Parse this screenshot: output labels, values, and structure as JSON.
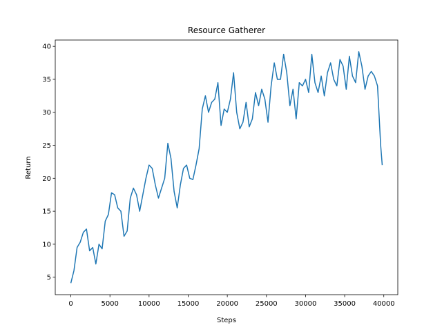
{
  "chart_data": {
    "type": "line",
    "title": "Resource Gatherer",
    "x_label": "Steps",
    "y_label": "Return",
    "x": [
      0,
      400,
      800,
      1200,
      1600,
      2000,
      2400,
      2800,
      3200,
      3600,
      4000,
      4400,
      4800,
      5200,
      5600,
      6000,
      6400,
      6800,
      7200,
      7600,
      8000,
      8400,
      8800,
      9200,
      9600,
      10000,
      10400,
      10800,
      11200,
      11600,
      12000,
      12400,
      12800,
      13200,
      13600,
      14000,
      14400,
      14800,
      15200,
      15600,
      16000,
      16400,
      16800,
      17200,
      17600,
      18000,
      18400,
      18800,
      19200,
      19600,
      20000,
      20400,
      20800,
      21200,
      21600,
      22000,
      22400,
      22800,
      23200,
      23600,
      24000,
      24400,
      24800,
      25200,
      25600,
      26000,
      26400,
      26800,
      27200,
      27600,
      28000,
      28400,
      28800,
      29200,
      29600,
      30000,
      30400,
      30800,
      31200,
      31600,
      32000,
      32400,
      32800,
      33200,
      33600,
      34000,
      34400,
      34800,
      35200,
      35600,
      36000,
      36400,
      36800,
      37200,
      37600,
      38000,
      38400,
      38800,
      39200,
      39600,
      39800
    ],
    "series": [
      {
        "name": "Return",
        "color": "#1f77b4",
        "values": [
          4.1,
          6,
          9.5,
          10.3,
          11.8,
          12.3,
          9,
          9.5,
          7,
          10,
          9.3,
          13.5,
          14.5,
          17.8,
          17.5,
          15.5,
          15,
          11.2,
          12,
          17,
          18.5,
          17.5,
          15,
          17.5,
          20,
          22,
          21.5,
          19,
          17,
          18.5,
          20,
          25.3,
          23,
          18,
          15.5,
          19,
          21.5,
          22,
          20,
          19.8,
          22,
          24.5,
          30.5,
          32.5,
          30,
          31.5,
          32,
          34.5,
          28,
          30.5,
          30,
          32,
          36,
          30,
          27.5,
          28.5,
          31.5,
          27.8,
          29,
          33,
          31,
          33.5,
          32,
          28.5,
          34,
          37.5,
          35,
          35,
          38.8,
          36,
          31,
          33.5,
          29,
          34.5,
          34,
          35,
          33,
          38.8,
          34.5,
          33,
          35.5,
          32.5,
          36,
          37.5,
          35,
          34,
          38,
          37,
          33.5,
          38.5,
          35.5,
          34.5,
          39.2,
          37,
          33.5,
          35.5,
          36.2,
          35.5,
          34,
          25,
          22
        ]
      }
    ],
    "xlim": [
      -1990,
      41790
    ],
    "ylim": [
      2.35,
      40.96
    ],
    "xticks": [
      0,
      5000,
      10000,
      15000,
      20000,
      25000,
      30000,
      35000,
      40000
    ],
    "yticks": [
      5,
      10,
      15,
      20,
      25,
      30,
      35,
      40
    ]
  }
}
